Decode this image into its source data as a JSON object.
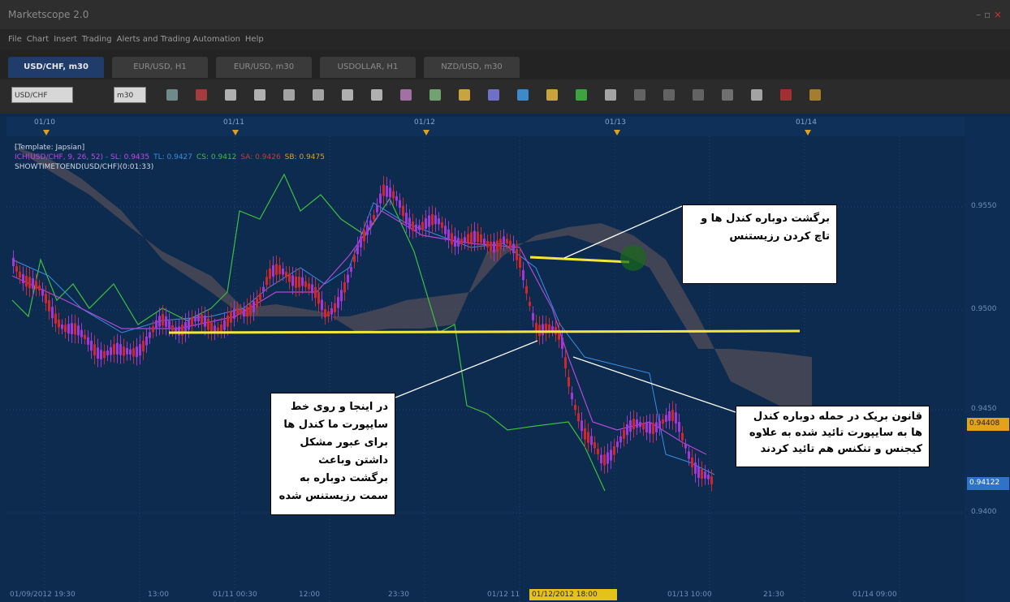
{
  "window": {
    "title": "Marketscope 2.0"
  },
  "menu": [
    "File",
    "Chart",
    "Insert",
    "Trading",
    "Alerts and Trading Automation",
    "Help"
  ],
  "tabs": [
    "USD/CHF, m30",
    "EUR/USD, H1",
    "EUR/USD, m30",
    "USDOLLAR, H1",
    "NZD/USD, m30"
  ],
  "toolbar": {
    "symbol": "USD/CHF",
    "period": "m30"
  },
  "chart": {
    "top_dates": [
      "01/10",
      "01/11",
      "01/12",
      "01/13",
      "01/14"
    ],
    "template": "[Template: Japsian]",
    "indicator": [
      "ICH(USD/CHF, 9, 26, 52) - SL: 0.9435",
      "TL: 0.9427",
      "CS: 0.9412",
      "SA: 0.9426",
      "SB: 0.9475"
    ],
    "timer": "SHOWTIMETOEND(USD/CHF)(0:01:33)",
    "price_axis": [
      "0.9550",
      "0.9500",
      "0.9450",
      "0.9400"
    ],
    "price_tags": [
      "0.94408",
      "0.94122"
    ],
    "time_axis": [
      "01/09/2012 19:30",
      "13:00",
      "01/11 00:30",
      "12:00",
      "23:30",
      "01/12 11",
      "01/13 10:00",
      "21:30",
      "01/14 09:00"
    ],
    "cursor_time": "01/12/2012 18:00",
    "annotations": [
      "برگشت دوباره کندل ها و تاچ کردن رزیستنس",
      "در اینجا و روی خط سایپورت ما کندل ها برای عبور مشکل داشتن وباعث برگشت دوباره به سمت رزیستنس شده",
      "قانون بریک در حمله دوباره کندل ها به سایپورت تائید شده به علاوه کیجنس و تنکنس هم تائید کردند"
    ]
  }
}
